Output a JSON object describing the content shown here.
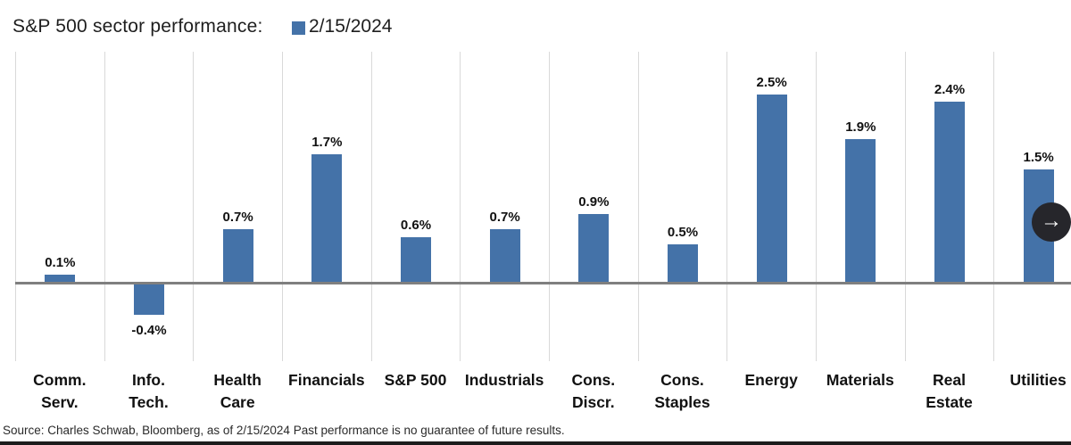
{
  "header": {
    "title": "S&P 500 sector performance:",
    "legend": {
      "label": "2/15/2024",
      "swatch_color": "#4472a8"
    }
  },
  "chart_data": {
    "type": "bar",
    "title": "S&P 500 sector performance",
    "legend_entries": [
      "2/15/2024"
    ],
    "legend_position": "top",
    "categories": [
      "Comm.\nServ.",
      "Info.\nTech.",
      "Health\nCare",
      "Financials",
      "S&P 500",
      "Industrials",
      "Cons.\nDiscr.",
      "Cons.\nStaples",
      "Energy",
      "Materials",
      "Real\nEstate",
      "Utilities"
    ],
    "values": [
      0.1,
      -0.4,
      0.7,
      1.7,
      0.6,
      0.7,
      0.9,
      0.5,
      2.5,
      1.9,
      2.4,
      1.5
    ],
    "value_labels": [
      "0.1%",
      "-0.4%",
      "0.7%",
      "1.7%",
      "0.6%",
      "0.7%",
      "0.9%",
      "0.5%",
      "2.5%",
      "1.9%",
      "2.4%",
      "1.5%"
    ],
    "unit": "%",
    "xlabel": "",
    "ylabel": "",
    "ylim": [
      -1.05,
      3.1
    ],
    "grid": "vertical category separators only, y-axis unlabeled",
    "bar_color": "#4472a8",
    "zero_line_color": "#7f7f7f",
    "gridline_color": "#d9d9d9"
  },
  "controls": {
    "next_button": {
      "arrow_glyph": "→"
    }
  },
  "footer": {
    "source": "Source: Charles Schwab, Bloomberg, as of 2/15/2024 Past performance is no guarantee of future results."
  },
  "colors": {
    "bar": "#4472a8",
    "zero_line": "#7f7f7f",
    "gridline": "#d9d9d9",
    "next_button_bg": "#26262b",
    "bottom_border": "#1c1c1c"
  }
}
